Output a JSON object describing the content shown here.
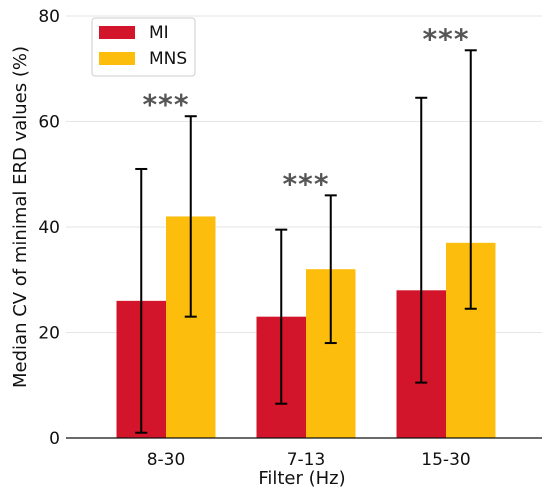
{
  "chart_data": {
    "type": "bar",
    "title": "",
    "xlabel": "Filter (Hz)",
    "ylabel": "Median CV of minimal ERD values (%)",
    "ylim": [
      0,
      80
    ],
    "yticks": [
      0,
      20,
      40,
      60,
      80
    ],
    "grid": "horizontal",
    "legend_position": "top-left",
    "categories": [
      "8-30",
      "7-13",
      "15-30"
    ],
    "series": [
      {
        "name": "MI",
        "color": "#d2152a",
        "values": [
          26,
          23,
          28
        ],
        "error_low": [
          1,
          6.5,
          10.5
        ],
        "error_high": [
          51,
          39.5,
          64.5
        ]
      },
      {
        "name": "MNS",
        "color": "#fdbd0d",
        "values": [
          42,
          32,
          37
        ],
        "error_low": [
          23,
          18,
          24.5
        ],
        "error_high": [
          61,
          46,
          73.5
        ]
      }
    ],
    "annotations": [
      "***",
      "***",
      "***"
    ]
  }
}
